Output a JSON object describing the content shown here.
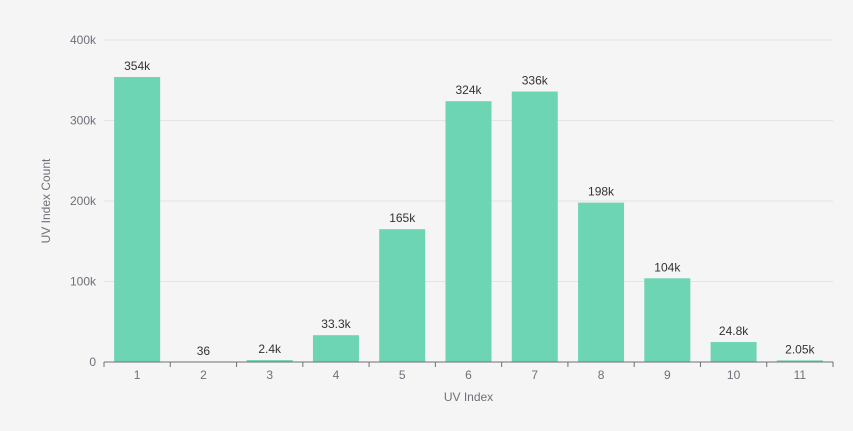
{
  "chart_data": {
    "type": "bar",
    "title": "",
    "xlabel": "UV Index",
    "ylabel": "UV Index Count",
    "categories": [
      "1",
      "2",
      "3",
      "4",
      "5",
      "6",
      "7",
      "8",
      "9",
      "10",
      "11"
    ],
    "values": [
      354000,
      36,
      2400,
      33300,
      165000,
      324000,
      336000,
      198000,
      104000,
      24800,
      2050
    ],
    "data_labels": [
      "354k",
      "36",
      "2.4k",
      "33.3k",
      "165k",
      "324k",
      "336k",
      "198k",
      "104k",
      "24.8k",
      "2.05k"
    ],
    "ylim": [
      0,
      400000
    ],
    "yticks": [
      0,
      100000,
      200000,
      300000,
      400000
    ],
    "ytick_labels": [
      "0",
      "100k",
      "200k",
      "300k",
      "400k"
    ],
    "grid": true,
    "legend": "none",
    "colors": {
      "bar": "#6dd4b4",
      "grid": "#e4e4e4",
      "axis": "#6e7079",
      "background": "#f5f5f5"
    }
  }
}
